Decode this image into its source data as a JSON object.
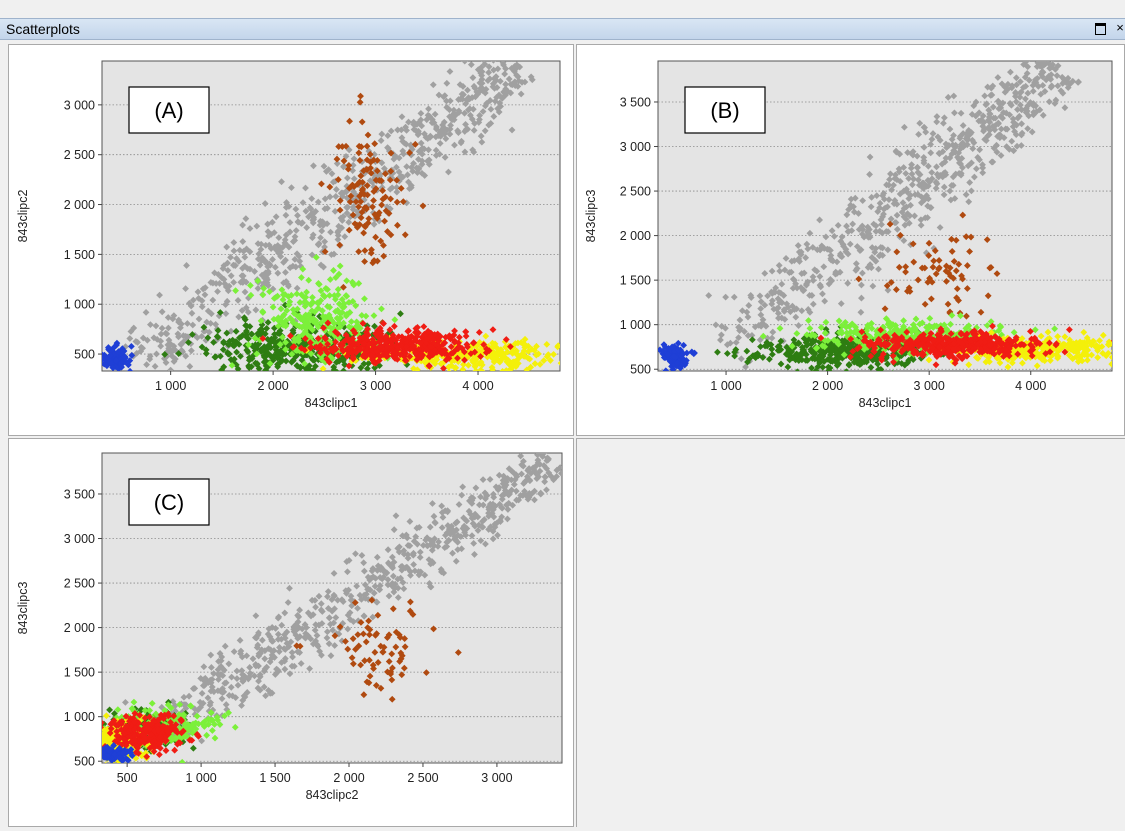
{
  "window": {
    "title": "Scatterplots"
  },
  "colors": {
    "plot_bg": "#e4e4e4",
    "gray": "#a0a0a0",
    "brown": "#b04a10",
    "blue": "#1f3fd6",
    "dark_green": "#2e7d12",
    "light_green": "#7cf03a",
    "red": "#f01c14",
    "yellow": "#f4f00a"
  },
  "chart_data": [
    {
      "id": "A",
      "type": "scatter",
      "panel_label": "(A)",
      "xlabel": "843clipc1",
      "ylabel": "843clipc2",
      "xlim": [
        330,
        4800
      ],
      "ylim": [
        330,
        3440
      ],
      "xticks": [
        1000,
        2000,
        3000,
        4000
      ],
      "xtick_labels": [
        "1 000",
        "2 000",
        "3 000",
        "4 000"
      ],
      "yticks": [
        500,
        1000,
        1500,
        2000,
        2500,
        3000
      ],
      "ytick_labels": [
        "500",
        "1 000",
        "1 500",
        "2 000",
        "2 500",
        "3 000"
      ],
      "grid": "horizontal-dotted",
      "clusters": [
        {
          "color": "gray",
          "count": 700,
          "seed": 11,
          "shape": "line",
          "x0": 700,
          "y0": 400,
          "x1": 4400,
          "y1": 3400,
          "spread": 160
        },
        {
          "color": "brown",
          "count": 120,
          "seed": 12,
          "shape": "blob",
          "cx": 2950,
          "cy": 2050,
          "sx": 180,
          "sy": 400
        },
        {
          "color": "dark_green",
          "count": 420,
          "seed": 13,
          "shape": "blob",
          "cx": 2250,
          "cy": 560,
          "sx": 450,
          "sy": 130
        },
        {
          "color": "light_green",
          "count": 260,
          "seed": 14,
          "shape": "blob",
          "cx": 2450,
          "cy": 850,
          "sx": 280,
          "sy": 230
        },
        {
          "color": "yellow",
          "count": 300,
          "seed": 15,
          "shape": "blob",
          "cx": 3900,
          "cy": 500,
          "sx": 500,
          "sy": 70
        },
        {
          "color": "red",
          "count": 380,
          "seed": 16,
          "shape": "blob",
          "cx": 3200,
          "cy": 580,
          "sx": 420,
          "sy": 80
        },
        {
          "color": "blue",
          "count": 90,
          "seed": 17,
          "shape": "blob",
          "cx": 460,
          "cy": 450,
          "sx": 60,
          "sy": 60
        }
      ]
    },
    {
      "id": "B",
      "type": "scatter",
      "panel_label": "(B)",
      "xlabel": "843clipc1",
      "ylabel": "843clipc3",
      "xlim": [
        330,
        4800
      ],
      "ylim": [
        480,
        3960
      ],
      "xticks": [
        1000,
        2000,
        3000,
        4000
      ],
      "xtick_labels": [
        "1 000",
        "2 000",
        "3 000",
        "4 000"
      ],
      "yticks": [
        500,
        1000,
        1500,
        2000,
        2500,
        3000,
        3500
      ],
      "ytick_labels": [
        "500",
        "1 000",
        "1 500",
        "2 000",
        "2 500",
        "3 000",
        "3 500"
      ],
      "grid": "horizontal-dotted",
      "clusters": [
        {
          "color": "gray",
          "count": 650,
          "seed": 21,
          "shape": "line",
          "x0": 1000,
          "y0": 700,
          "x1": 4300,
          "y1": 3900,
          "spread": 170
        },
        {
          "color": "brown",
          "count": 70,
          "seed": 22,
          "shape": "blob",
          "cx": 3050,
          "cy": 1600,
          "sx": 250,
          "sy": 250
        },
        {
          "color": "dark_green",
          "count": 420,
          "seed": 23,
          "shape": "blob",
          "cx": 2150,
          "cy": 700,
          "sx": 420,
          "sy": 90
        },
        {
          "color": "light_green",
          "count": 260,
          "seed": 24,
          "shape": "blob",
          "cx": 2700,
          "cy": 880,
          "sx": 500,
          "sy": 90
        },
        {
          "color": "yellow",
          "count": 300,
          "seed": 25,
          "shape": "blob",
          "cx": 4000,
          "cy": 720,
          "sx": 450,
          "sy": 70
        },
        {
          "color": "red",
          "count": 380,
          "seed": 26,
          "shape": "blob",
          "cx": 3250,
          "cy": 780,
          "sx": 420,
          "sy": 70
        },
        {
          "color": "blue",
          "count": 90,
          "seed": 27,
          "shape": "blob",
          "cx": 500,
          "cy": 650,
          "sx": 70,
          "sy": 70
        }
      ]
    },
    {
      "id": "C",
      "type": "scatter",
      "panel_label": "(C)",
      "xlabel": "843clipc2",
      "ylabel": "843clipc3",
      "xlim": [
        330,
        3440
      ],
      "ylim": [
        480,
        3960
      ],
      "xticks": [
        500,
        1000,
        1500,
        2000,
        2500,
        3000
      ],
      "xtick_labels": [
        "500",
        "1 000",
        "1 500",
        "2 000",
        "2 500",
        "3 000"
      ],
      "yticks": [
        500,
        1000,
        1500,
        2000,
        2500,
        3000,
        3500
      ],
      "ytick_labels": [
        "500",
        "1 000",
        "1 500",
        "2 000",
        "2 500",
        "3 000",
        "3 500"
      ],
      "grid": "horizontal-dotted",
      "clusters": [
        {
          "color": "gray",
          "count": 650,
          "seed": 31,
          "shape": "line",
          "x0": 700,
          "y0": 800,
          "x1": 3400,
          "y1": 3900,
          "spread": 110
        },
        {
          "color": "brown",
          "count": 70,
          "seed": 32,
          "shape": "blob",
          "cx": 2200,
          "cy": 1800,
          "sx": 200,
          "sy": 250
        },
        {
          "color": "dark_green",
          "count": 120,
          "seed": 33,
          "shape": "blob",
          "cx": 600,
          "cy": 850,
          "sx": 150,
          "sy": 120
        },
        {
          "color": "light_green",
          "count": 200,
          "seed": 34,
          "shape": "blob",
          "cx": 750,
          "cy": 880,
          "sx": 200,
          "sy": 110
        },
        {
          "color": "yellow",
          "count": 200,
          "seed": 35,
          "shape": "blob",
          "cx": 450,
          "cy": 720,
          "sx": 90,
          "sy": 120
        },
        {
          "color": "red",
          "count": 250,
          "seed": 36,
          "shape": "blob",
          "cx": 620,
          "cy": 820,
          "sx": 130,
          "sy": 110
        },
        {
          "color": "blue",
          "count": 60,
          "seed": 37,
          "shape": "blob",
          "cx": 420,
          "cy": 580,
          "sx": 50,
          "sy": 40
        }
      ]
    }
  ]
}
